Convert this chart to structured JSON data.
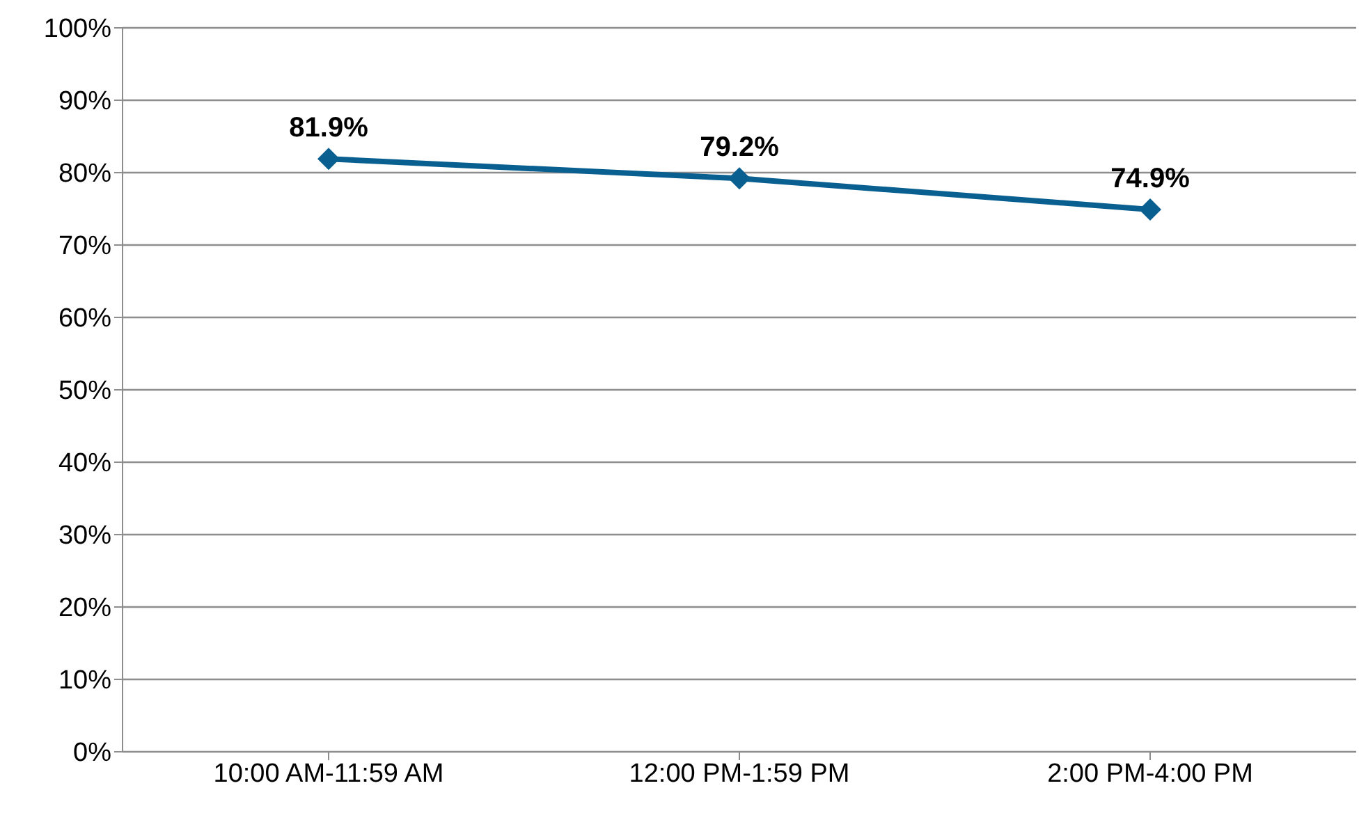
{
  "chart_data": {
    "type": "line",
    "categories": [
      "10:00 AM-11:59 AM",
      "12:00 PM-1:59 PM",
      "2:00 PM-4:00 PM"
    ],
    "series": [
      {
        "color": "#0a5f91",
        "values": [
          81.9,
          79.2,
          74.9
        ],
        "value_labels": [
          "81.9%",
          "79.2%",
          "74.9%"
        ]
      }
    ],
    "ylim": [
      0,
      100
    ],
    "yticks": [
      {
        "value": 0,
        "label": "0%"
      },
      {
        "value": 10,
        "label": "10%"
      },
      {
        "value": 20,
        "label": "20%"
      },
      {
        "value": 30,
        "label": "30%"
      },
      {
        "value": 40,
        "label": "40%"
      },
      {
        "value": 50,
        "label": "50%"
      },
      {
        "value": 60,
        "label": "60%"
      },
      {
        "value": 70,
        "label": "70%"
      },
      {
        "value": 80,
        "label": "80%"
      },
      {
        "value": 90,
        "label": "90%"
      },
      {
        "value": 100,
        "label": "100%"
      }
    ],
    "grid": "y",
    "legend": false,
    "marker": "diamond",
    "line_style": "solid"
  }
}
